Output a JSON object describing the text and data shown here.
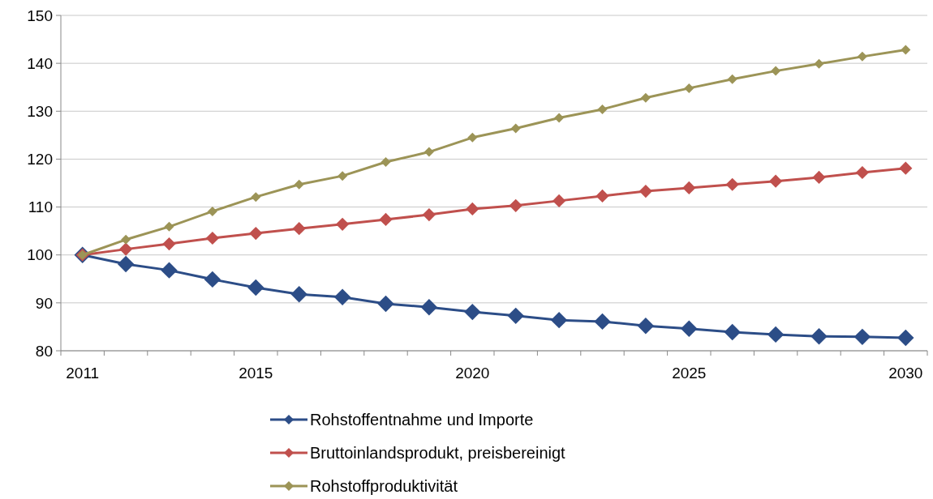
{
  "chart_data": {
    "type": "line",
    "categories": [
      "2011",
      null,
      null,
      null,
      "2015",
      null,
      null,
      null,
      null,
      "2020",
      null,
      null,
      null,
      null,
      "2025",
      null,
      null,
      null,
      null,
      "2030"
    ],
    "series": [
      {
        "name": "Rohstoffentnahme und Importe",
        "color": "#2c4d87",
        "values": [
          100,
          98.1,
          96.8,
          94.9,
          93.2,
          91.8,
          91.2,
          89.8,
          89.1,
          88.1,
          87.3,
          86.4,
          86.1,
          85.2,
          84.6,
          83.9,
          83.4,
          83.0,
          82.9,
          82.7
        ]
      },
      {
        "name": "Bruttoinlandsprodukt, preisbereinigt",
        "color": "#c0504d",
        "values": [
          100,
          101.2,
          102.3,
          103.5,
          104.5,
          105.5,
          106.4,
          107.4,
          108.4,
          109.6,
          110.3,
          111.3,
          112.3,
          113.3,
          114.0,
          114.7,
          115.4,
          116.2,
          117.2,
          118.1
        ]
      },
      {
        "name": "Rohstoffproduktivität",
        "color": "#9c9457",
        "values": [
          100,
          103.2,
          105.9,
          109.1,
          112.1,
          114.7,
          116.5,
          119.4,
          121.5,
          124.5,
          126.4,
          128.6,
          130.4,
          132.8,
          134.8,
          136.7,
          138.4,
          139.9,
          141.4,
          142.8
        ]
      }
    ],
    "ylim": [
      80,
      150
    ],
    "yticks": [
      80,
      90,
      100,
      110,
      120,
      130,
      140,
      150
    ],
    "grid": "y",
    "legend": "bottom",
    "marker": "diamond",
    "line_style": "solid"
  }
}
